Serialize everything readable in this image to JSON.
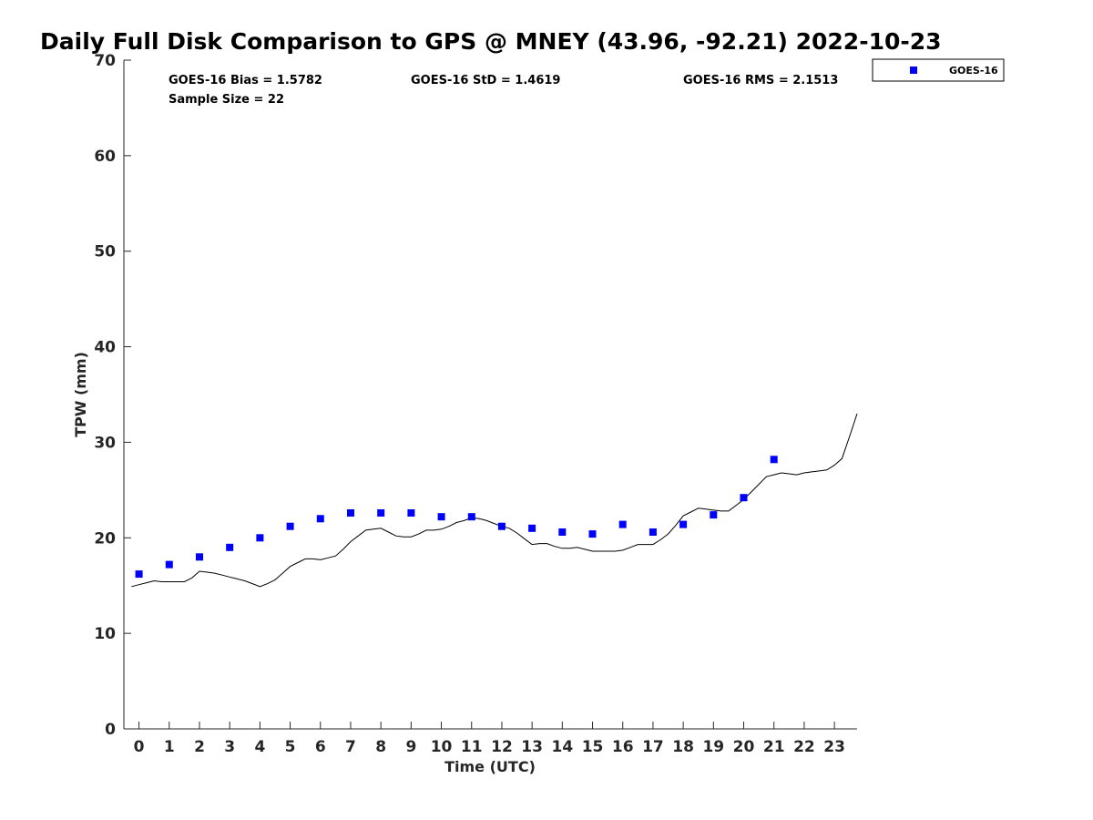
{
  "chart_data": {
    "type": "scatter",
    "title": "Daily Full Disk Comparison to GPS @ MNEY (43.96, -92.21) 2022-10-23",
    "xlabel": "Time (UTC)",
    "ylabel": "TPW (mm)",
    "xlim": [
      -0.5,
      23.75
    ],
    "ylim": [
      0,
      70
    ],
    "x_ticks": [
      0,
      1,
      2,
      3,
      4,
      5,
      6,
      7,
      8,
      9,
      10,
      11,
      12,
      13,
      14,
      15,
      16,
      17,
      18,
      19,
      20,
      21,
      22,
      23
    ],
    "y_ticks": [
      0,
      10,
      20,
      30,
      40,
      50,
      60,
      70
    ],
    "grid": false,
    "legend_position": "top-right, outside plot",
    "stats": [
      {
        "text": "GOES-16 Bias = 1.5782"
      },
      {
        "text": "Sample Size = 22"
      },
      {
        "text": "GOES-16 StD = 1.4619"
      },
      {
        "text": "GOES-16 RMS = 2.1513"
      }
    ],
    "series": [
      {
        "name": "GOES-16",
        "kind": "markers",
        "marker": "square",
        "color": "#0000ff",
        "x": [
          0,
          1,
          2,
          3,
          4,
          5,
          6,
          7,
          8,
          9,
          10,
          11,
          12,
          13,
          14,
          15,
          16,
          17,
          18,
          19,
          20,
          21
        ],
        "y": [
          16.2,
          17.2,
          18.0,
          19.0,
          20.0,
          21.2,
          22.0,
          22.6,
          22.6,
          22.6,
          22.2,
          22.2,
          21.2,
          21.0,
          20.6,
          20.4,
          21.4,
          20.6,
          21.4,
          22.4,
          24.2,
          28.2
        ]
      },
      {
        "kind": "line",
        "color": "#000000",
        "x": [
          -0.25,
          0,
          0.25,
          0.5,
          0.75,
          1,
          1.25,
          1.5,
          1.75,
          2,
          2.25,
          2.5,
          2.75,
          3,
          3.25,
          3.5,
          3.75,
          4,
          4.25,
          4.5,
          4.75,
          5,
          5.25,
          5.5,
          5.75,
          6,
          6.25,
          6.5,
          6.75,
          7,
          7.25,
          7.5,
          7.75,
          8,
          8.25,
          8.5,
          8.75,
          9,
          9.25,
          9.5,
          9.75,
          10,
          10.25,
          10.5,
          10.75,
          11,
          11.25,
          11.5,
          11.75,
          12,
          12.25,
          12.5,
          12.75,
          13,
          13.25,
          13.5,
          13.75,
          14,
          14.25,
          14.5,
          14.75,
          15,
          15.25,
          15.5,
          15.75,
          16,
          16.25,
          16.5,
          16.75,
          17,
          17.25,
          17.5,
          17.75,
          18,
          18.25,
          18.5,
          18.75,
          19,
          19.25,
          19.5,
          19.75,
          20,
          20.25,
          20.5,
          20.75,
          21,
          21.25,
          21.5,
          21.75,
          22,
          22.25,
          22.5,
          22.75,
          23,
          23.25,
          23.5,
          23.75
        ],
        "y": [
          14.9,
          15.1,
          15.3,
          15.5,
          15.4,
          15.4,
          15.4,
          15.4,
          15.8,
          16.5,
          16.4,
          16.3,
          16.1,
          15.9,
          15.7,
          15.5,
          15.2,
          14.9,
          15.2,
          15.6,
          16.3,
          17.0,
          17.4,
          17.8,
          17.8,
          17.7,
          17.9,
          18.1,
          18.8,
          19.6,
          20.2,
          20.8,
          20.9,
          21.0,
          20.6,
          20.2,
          20.1,
          20.1,
          20.4,
          20.8,
          20.8,
          20.9,
          21.2,
          21.6,
          21.8,
          22.1,
          22.0,
          21.8,
          21.5,
          21.2,
          21.0,
          20.5,
          19.9,
          19.3,
          19.4,
          19.4,
          19.1,
          18.9,
          18.9,
          19.0,
          18.8,
          18.6,
          18.6,
          18.6,
          18.6,
          18.7,
          19.0,
          19.3,
          19.3,
          19.3,
          19.8,
          20.4,
          21.3,
          22.3,
          22.7,
          23.1,
          23.0,
          22.9,
          22.8,
          22.8,
          23.4,
          24.0,
          24.8,
          25.6,
          26.4,
          26.6,
          26.8,
          26.7,
          26.6,
          26.8,
          26.9,
          27.0,
          27.1,
          27.6,
          28.3,
          30.6,
          33.0
        ]
      }
    ]
  }
}
